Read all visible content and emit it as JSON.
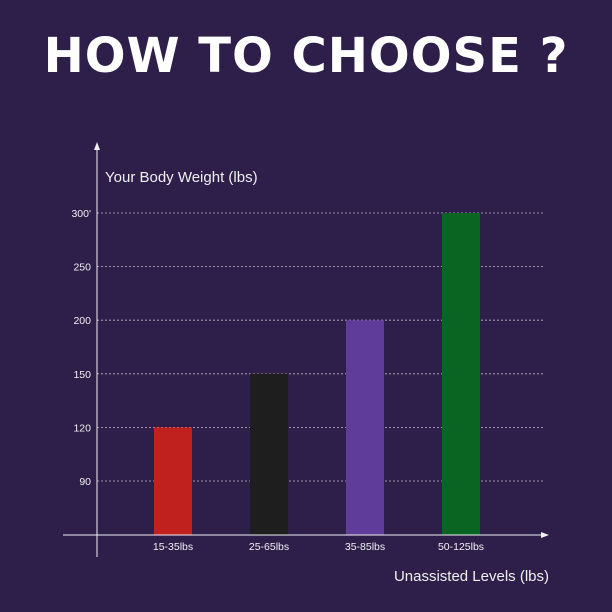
{
  "header": {
    "title": "HOW TO CHOOSE ?"
  },
  "chart_data": {
    "type": "bar",
    "categories": [
      "15-35lbs",
      "25-65lbs",
      "35-85lbs",
      "50-125lbs"
    ],
    "values": [
      120,
      150,
      200,
      300
    ],
    "colors": [
      "#c0201e",
      "#1e1e1e",
      "#5f3b9a",
      "#0a6522"
    ],
    "ylabel": "Your Body Weight (lbs)",
    "xlabel": "Unassisted Levels (lbs)",
    "yticks": [
      90,
      120,
      150,
      200,
      250,
      300
    ],
    "ytick_labels": [
      "90",
      "120",
      "150",
      "200",
      "250",
      "300'"
    ],
    "grid": true
  }
}
